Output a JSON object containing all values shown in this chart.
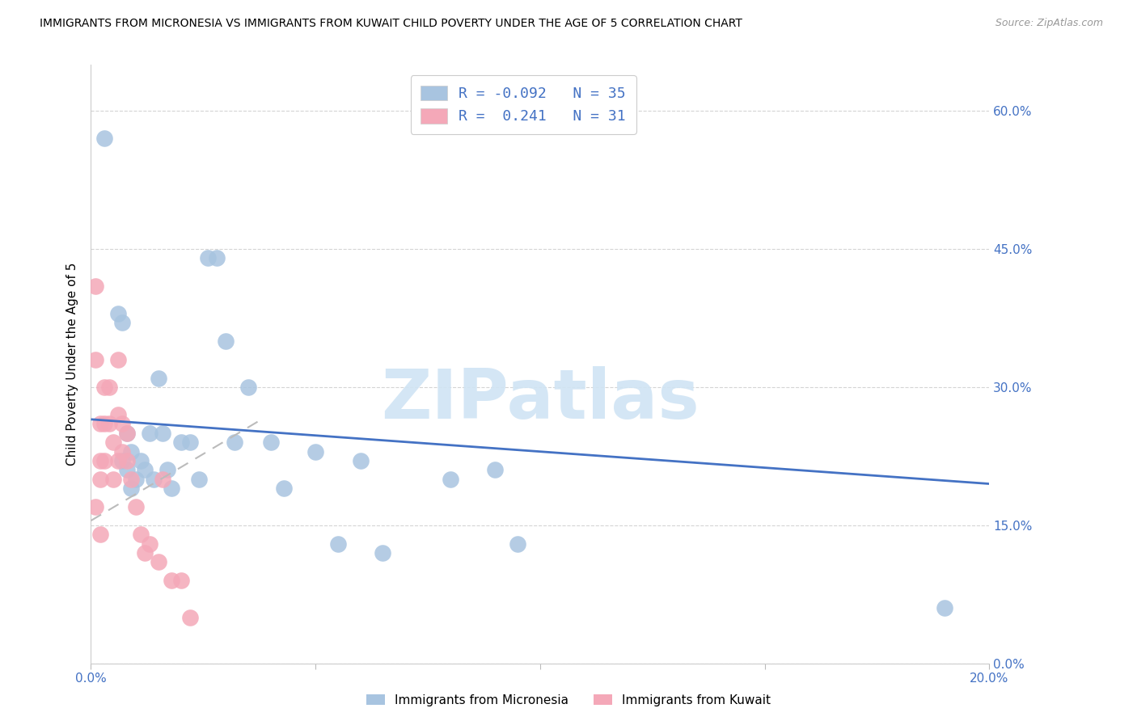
{
  "title": "IMMIGRANTS FROM MICRONESIA VS IMMIGRANTS FROM KUWAIT CHILD POVERTY UNDER THE AGE OF 5 CORRELATION CHART",
  "source": "Source: ZipAtlas.com",
  "ylabel": "Child Poverty Under the Age of 5",
  "xlim": [
    0.0,
    0.2
  ],
  "ylim": [
    0.0,
    0.65
  ],
  "yticks": [
    0.0,
    0.15,
    0.3,
    0.45,
    0.6
  ],
  "ytick_labels": [
    "0.0%",
    "15.0%",
    "30.0%",
    "45.0%",
    "60.0%"
  ],
  "xticks": [
    0.0,
    0.05,
    0.1,
    0.15,
    0.2
  ],
  "xtick_labels": [
    "0.0%",
    "",
    "",
    "",
    "20.0%"
  ],
  "micronesia_R": -0.092,
  "micronesia_N": 35,
  "kuwait_R": 0.241,
  "kuwait_N": 31,
  "micronesia_color": "#a8c4e0",
  "kuwait_color": "#f4a8b8",
  "micronesia_line_color": "#4472c4",
  "kuwait_line_color": "#c0504d",
  "watermark_color": "#d0e4f4",
  "tick_color": "#4472c4",
  "grid_color": "#d0d0d0",
  "micronesia_x": [
    0.003,
    0.006,
    0.007,
    0.007,
    0.008,
    0.008,
    0.009,
    0.009,
    0.01,
    0.011,
    0.012,
    0.013,
    0.014,
    0.015,
    0.016,
    0.017,
    0.018,
    0.02,
    0.022,
    0.024,
    0.026,
    0.028,
    0.03,
    0.032,
    0.035,
    0.04,
    0.043,
    0.05,
    0.055,
    0.06,
    0.065,
    0.08,
    0.09,
    0.095,
    0.19
  ],
  "micronesia_y": [
    0.57,
    0.38,
    0.22,
    0.37,
    0.21,
    0.25,
    0.23,
    0.19,
    0.2,
    0.22,
    0.21,
    0.25,
    0.2,
    0.31,
    0.25,
    0.21,
    0.19,
    0.24,
    0.24,
    0.2,
    0.44,
    0.44,
    0.35,
    0.24,
    0.3,
    0.24,
    0.19,
    0.23,
    0.13,
    0.22,
    0.12,
    0.2,
    0.21,
    0.13,
    0.06
  ],
  "kuwait_x": [
    0.001,
    0.001,
    0.001,
    0.002,
    0.002,
    0.002,
    0.002,
    0.003,
    0.003,
    0.003,
    0.004,
    0.004,
    0.005,
    0.005,
    0.006,
    0.006,
    0.006,
    0.007,
    0.007,
    0.008,
    0.008,
    0.009,
    0.01,
    0.011,
    0.012,
    0.013,
    0.015,
    0.016,
    0.018,
    0.02,
    0.022
  ],
  "kuwait_y": [
    0.41,
    0.33,
    0.17,
    0.26,
    0.22,
    0.2,
    0.14,
    0.3,
    0.26,
    0.22,
    0.3,
    0.26,
    0.24,
    0.2,
    0.33,
    0.27,
    0.22,
    0.26,
    0.23,
    0.25,
    0.22,
    0.2,
    0.17,
    0.14,
    0.12,
    0.13,
    0.11,
    0.2,
    0.09,
    0.09,
    0.05
  ],
  "mic_trend_x0": 0.0,
  "mic_trend_x1": 0.2,
  "mic_trend_y0": 0.265,
  "mic_trend_y1": 0.195,
  "kuw_trend_x0": 0.0,
  "kuw_trend_x1": 0.038,
  "kuw_trend_y0": 0.155,
  "kuw_trend_y1": 0.265
}
